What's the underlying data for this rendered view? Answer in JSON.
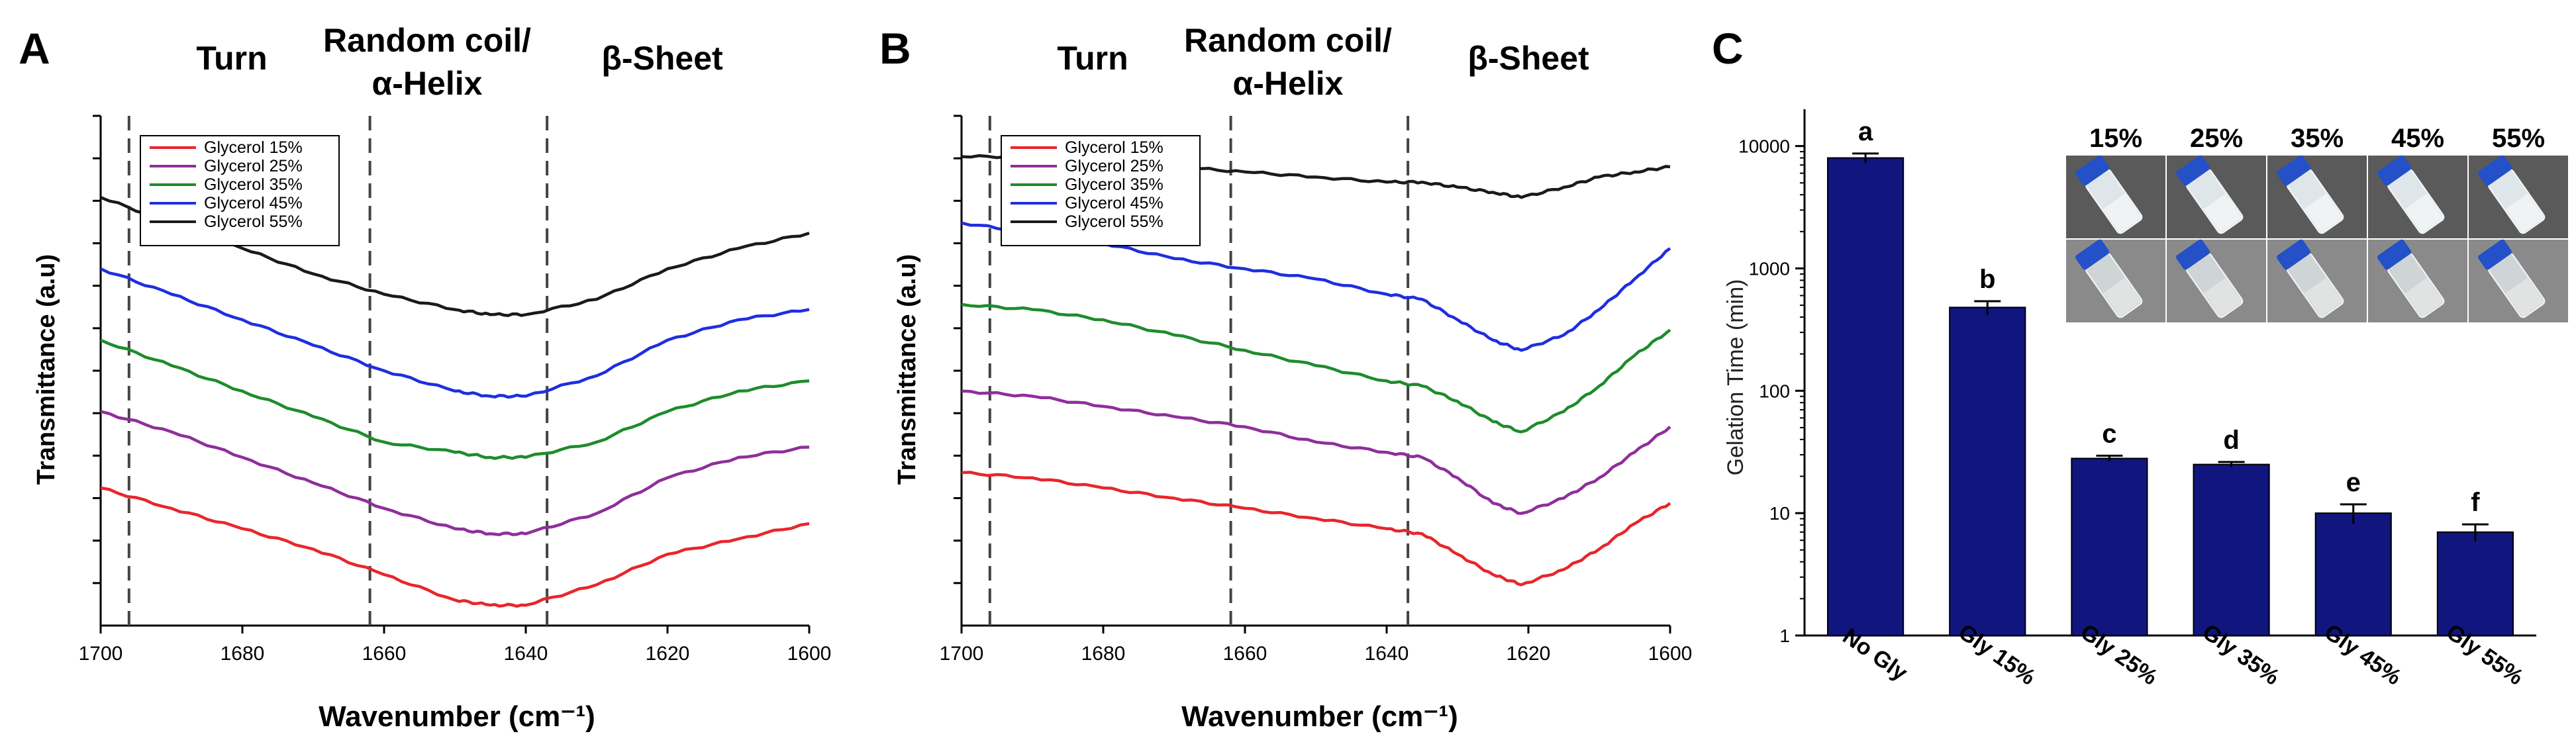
{
  "panels": {
    "A": {
      "label": "A",
      "regions": [
        "Turn",
        "Random coil/",
        "α-Helix",
        "β-Sheet"
      ]
    },
    "B": {
      "label": "B",
      "regions": [
        "Turn",
        "Random coil/",
        "α-Helix",
        "β-Sheet"
      ]
    },
    "C": {
      "label": "C",
      "photo_labels": [
        "15%",
        "25%",
        "35%",
        "45%",
        "55%"
      ]
    }
  },
  "colors": {
    "g15": "#e8262b",
    "g25": "#8e2f9a",
    "g35": "#1e8c2c",
    "g45": "#1f2ee0",
    "g55": "#1a1a1a",
    "bar": "#10167e"
  },
  "chart_data": [
    {
      "type": "line",
      "panel": "A",
      "title": "",
      "xlabel": "Wavenumber (cm⁻¹)",
      "ylabel": "Transmittance (a.u)",
      "xlim": [
        1700,
        1600
      ],
      "x_reversed": true,
      "ylim": [
        0,
        100
      ],
      "x_ticks": [
        1700,
        1680,
        1660,
        1640,
        1620,
        1600
      ],
      "y_tick_labels": false,
      "vlines": [
        1696,
        1662,
        1637
      ],
      "legend": [
        "Glycerol 15%",
        "Glycerol 25%",
        "Glycerol 35%",
        "Glycerol 45%",
        "Glycerol 55%"
      ],
      "legend_position": "top-left",
      "x": [
        1700,
        1690,
        1680,
        1670,
        1660,
        1650,
        1645,
        1640,
        1630,
        1620,
        1610,
        1600
      ],
      "series": [
        {
          "name": "Glycerol 15%",
          "color_key": "g15",
          "values": [
            27,
            23,
            19,
            15,
            10,
            5,
            4,
            4,
            8,
            14,
            17,
            20
          ]
        },
        {
          "name": "Glycerol 25%",
          "color_key": "g25",
          "values": [
            42,
            38,
            33,
            28,
            23,
            19,
            18,
            18,
            22,
            29,
            33,
            35
          ]
        },
        {
          "name": "Glycerol 35%",
          "color_key": "g35",
          "values": [
            56,
            51,
            46,
            41,
            36,
            34,
            33,
            33,
            36,
            42,
            46,
            48
          ]
        },
        {
          "name": "Glycerol 45%",
          "color_key": "g45",
          "values": [
            70,
            65,
            60,
            55,
            50,
            46,
            45,
            45,
            49,
            56,
            60,
            62
          ]
        },
        {
          "name": "Glycerol 55%",
          "color_key": "g55",
          "values": [
            84,
            79,
            74,
            69,
            65,
            62,
            61,
            61,
            64,
            70,
            74,
            77
          ]
        }
      ]
    },
    {
      "type": "line",
      "panel": "B",
      "title": "",
      "xlabel": "Wavenumber (cm⁻¹)",
      "ylabel": "Transmittance (a.u)",
      "xlim": [
        1700,
        1600
      ],
      "x_reversed": true,
      "ylim": [
        0,
        100
      ],
      "x_ticks": [
        1700,
        1680,
        1660,
        1640,
        1620,
        1600
      ],
      "y_tick_labels": false,
      "vlines": [
        1696,
        1662,
        1637
      ],
      "legend": [
        "Glycerol 15%",
        "Glycerol 25%",
        "Glycerol 35%",
        "Glycerol 45%",
        "Glycerol 55%"
      ],
      "legend_position": "top-left",
      "x": [
        1700,
        1690,
        1680,
        1670,
        1660,
        1650,
        1640,
        1635,
        1630,
        1625,
        1621,
        1615,
        1610,
        1605,
        1600
      ],
      "series": [
        {
          "name": "Glycerol 15%",
          "color_key": "g15",
          "values": [
            30,
            29,
            27,
            25,
            23,
            21,
            19,
            18,
            14,
            10,
            8,
            11,
            15,
            20,
            24
          ]
        },
        {
          "name": "Glycerol 25%",
          "color_key": "g25",
          "values": [
            46,
            45,
            43,
            41,
            39,
            36,
            34,
            33,
            29,
            24,
            22,
            25,
            29,
            34,
            39
          ]
        },
        {
          "name": "Glycerol 35%",
          "color_key": "g35",
          "values": [
            63,
            62,
            60,
            57,
            54,
            51,
            48,
            47,
            44,
            40,
            38,
            42,
            47,
            53,
            58
          ]
        },
        {
          "name": "Glycerol 45%",
          "color_key": "g45",
          "values": [
            79,
            77,
            75,
            72,
            70,
            68,
            65,
            64,
            60,
            56,
            54,
            57,
            62,
            68,
            74
          ]
        },
        {
          "name": "Glycerol 55%",
          "color_key": "g55",
          "values": [
            92,
            92,
            91,
            90,
            89,
            88,
            87,
            87,
            86,
            85,
            84,
            86,
            88,
            89,
            90
          ]
        }
      ]
    },
    {
      "type": "bar",
      "panel": "C",
      "title": "",
      "xlabel": "",
      "ylabel": "Gelation Time (min)",
      "y_scale": "log",
      "ylim": [
        1,
        20000
      ],
      "y_ticks": [
        1,
        10,
        100,
        1000,
        10000
      ],
      "categories": [
        "No Gly",
        "Gly 15%",
        "Gly 25%",
        "Gly 35%",
        "Gly 45%",
        "Gly 55%"
      ],
      "values": [
        8000,
        480,
        28,
        25,
        10,
        7
      ],
      "error": [
        700,
        60,
        1.5,
        1.2,
        1.8,
        1.1
      ],
      "letters": [
        "a",
        "b",
        "c",
        "d",
        "e",
        "f"
      ]
    }
  ]
}
